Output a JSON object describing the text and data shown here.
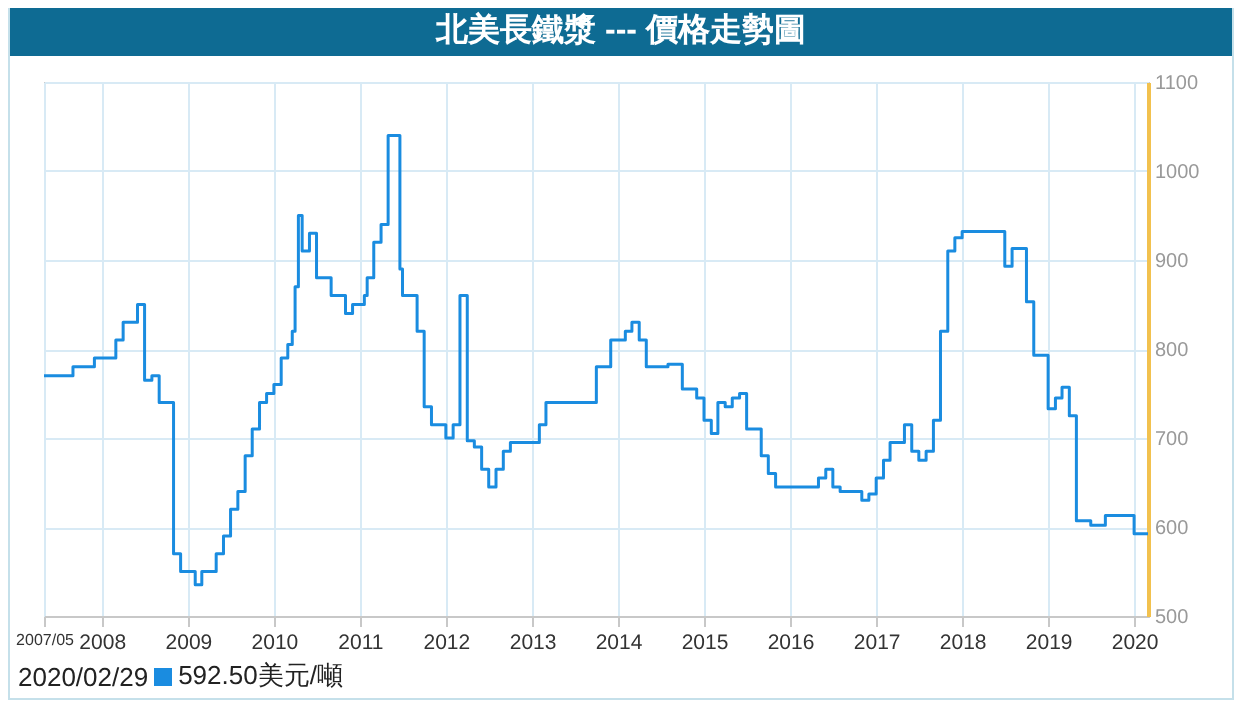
{
  "chart_data": {
    "type": "step",
    "title": "北美長鐵漿 --- 價格走勢圖",
    "annotations": [
      "2020/02/29",
      "592.50美元/噸"
    ],
    "x": [
      "2007-05",
      "2007-09",
      "2007-12",
      "2008-03",
      "2008-04",
      "2008-06",
      "2008-07",
      "2008-08",
      "2008-09",
      "2008-11",
      "2008-12",
      "2009-02",
      "2009-03",
      "2009-05",
      "2009-06",
      "2009-07",
      "2009-08",
      "2009-09",
      "2009-10",
      "2009-11",
      "2009-12",
      "2010-01",
      "2010-02",
      "2010-03",
      "2010-03-20",
      "2010-04",
      "2010-04-15",
      "2010-05",
      "2010-06",
      "2010-07",
      "2010-09",
      "2010-11",
      "2010-12",
      "2011-01-20",
      "2011-02",
      "2011-03",
      "2011-04",
      "2011-05",
      "2011-06-20",
      "2011-07",
      "2011-09",
      "2011-10",
      "2011-11",
      "2012-01",
      "2012-02",
      "2012-03",
      "2012-04",
      "2012-05",
      "2012-06",
      "2012-07",
      "2012-08",
      "2012-09",
      "2012-10",
      "2013-02",
      "2013-03",
      "2013-10",
      "2013-12",
      "2014-02",
      "2014-03",
      "2014-04",
      "2014-05",
      "2014-08",
      "2014-10",
      "2014-12",
      "2015-01",
      "2015-02",
      "2015-03",
      "2015-04",
      "2015-05",
      "2015-06",
      "2015-07",
      "2015-09",
      "2015-10",
      "2015-11",
      "2016-05",
      "2016-06",
      "2016-07",
      "2016-08",
      "2016-11",
      "2016-12",
      "2017-01",
      "2017-02",
      "2017-03",
      "2017-05",
      "2017-06",
      "2017-07",
      "2017-08",
      "2017-09",
      "2017-10",
      "2017-11",
      "2017-12",
      "2018-01",
      "2018-07",
      "2018-08",
      "2018-10",
      "2018-11",
      "2019-01",
      "2019-02",
      "2019-03",
      "2019-04",
      "2019-05",
      "2019-07",
      "2019-09",
      "2020-01",
      "2020-02-29"
    ],
    "series": [
      {
        "color": "#1a8ce0",
        "values": [
          770,
          780,
          790,
          810,
          830,
          850,
          765,
          770,
          740,
          570,
          550,
          535,
          550,
          570,
          590,
          620,
          640,
          680,
          710,
          740,
          750,
          760,
          790,
          805,
          820,
          870,
          950,
          910,
          930,
          880,
          860,
          840,
          850,
          860,
          880,
          920,
          940,
          1040,
          890,
          860,
          820,
          735,
          715,
          700,
          715,
          860,
          697,
          690,
          665,
          645,
          665,
          685,
          695,
          715,
          740,
          780,
          810,
          820,
          830,
          810,
          780,
          783,
          755,
          745,
          720,
          705,
          740,
          735,
          745,
          750,
          710,
          680,
          660,
          645,
          655,
          665,
          645,
          640,
          630,
          637,
          655,
          675,
          695,
          715,
          685,
          675,
          685,
          720,
          820,
          910,
          925,
          932,
          893,
          913,
          853,
          793,
          733,
          745,
          757,
          725,
          607,
          602,
          613,
          592.5,
          592.5
        ]
      }
    ],
    "xlim": [
      "2007-05",
      "2020-02-29"
    ],
    "xticks": [
      {
        "value": "2007-05",
        "label": "2007/05"
      },
      {
        "value": "2008",
        "label": "2008"
      },
      {
        "value": "2009",
        "label": "2009"
      },
      {
        "value": "2010",
        "label": "2010"
      },
      {
        "value": "2011",
        "label": "2011"
      },
      {
        "value": "2012",
        "label": "2012"
      },
      {
        "value": "2013",
        "label": "2013"
      },
      {
        "value": "2014",
        "label": "2014"
      },
      {
        "value": "2015",
        "label": "2015"
      },
      {
        "value": "2016",
        "label": "2016"
      },
      {
        "value": "2017",
        "label": "2017"
      },
      {
        "value": "2018",
        "label": "2018"
      },
      {
        "value": "2019",
        "label": "2019"
      },
      {
        "value": "2020",
        "label": "2020"
      }
    ],
    "ylim": [
      500,
      1100
    ],
    "yticks": [
      500,
      600,
      700,
      800,
      900,
      1000,
      1100
    ],
    "grid": true,
    "line_style": "solid"
  }
}
